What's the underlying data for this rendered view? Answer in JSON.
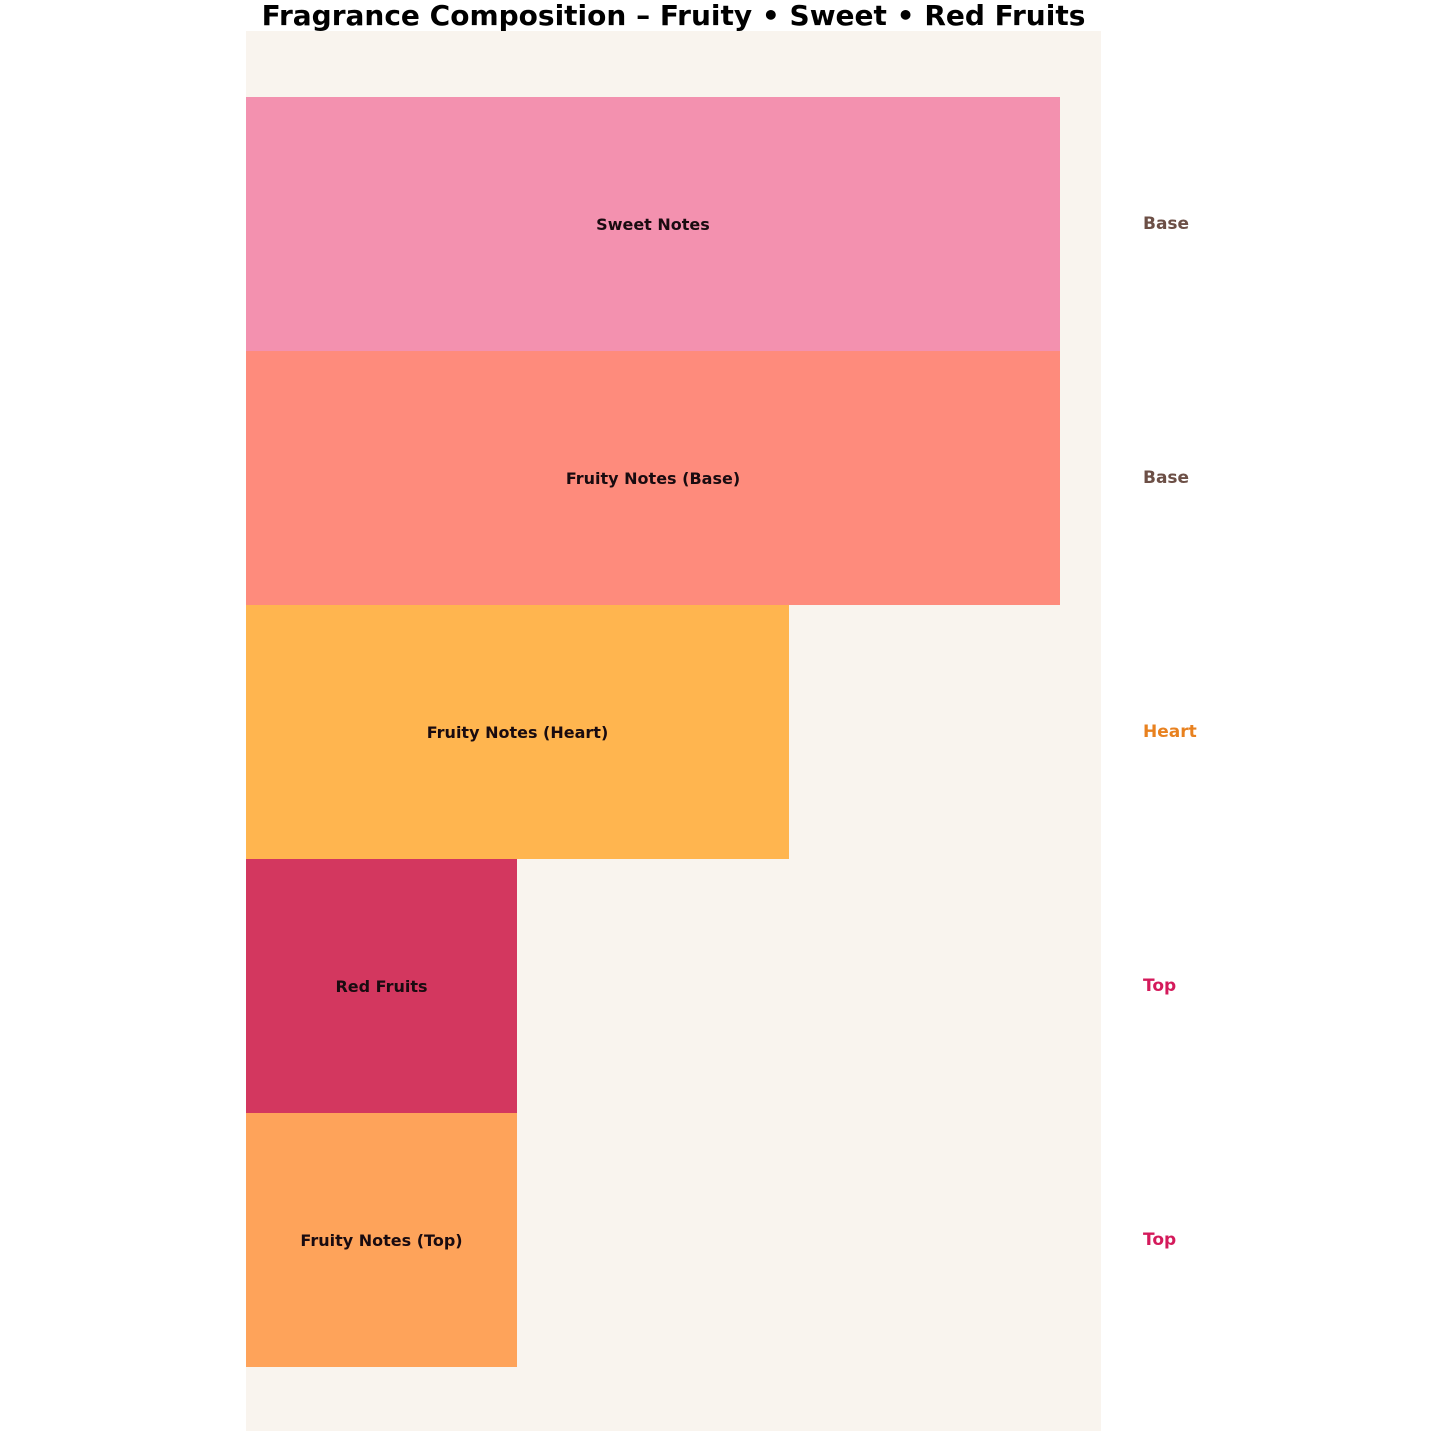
{
  "chart_data": {
    "type": "bar",
    "orientation": "horizontal",
    "title": "Fragrance Composition – Fruity • Sweet • Red Fruits",
    "categories": [
      "Sweet Notes",
      "Fruity Notes (Base)",
      "Fruity Notes (Heart)",
      "Red Fruits",
      "Fruity Notes (Top)"
    ],
    "values": [
      3,
      3,
      2,
      1,
      1
    ],
    "xlim": [
      0,
      3.15
    ],
    "bar_colors": [
      "#f391af",
      "#fe8b7c",
      "#ffb54f",
      "#d3375f",
      "#fea35a"
    ],
    "bar_label_color": "#190b10",
    "phase_labels": [
      "Base",
      "Base",
      "Heart",
      "Top",
      "Top"
    ],
    "phase_label_colors": [
      "#6c4f46",
      "#6c4f46",
      "#e8811f",
      "#d41a5b",
      "#d41a5b"
    ],
    "plot_bg": "#f9f4ee",
    "page_bg": "#ffffff",
    "grid": false,
    "axes_visible": false,
    "legend": "none",
    "xlabel": "",
    "ylabel": ""
  }
}
